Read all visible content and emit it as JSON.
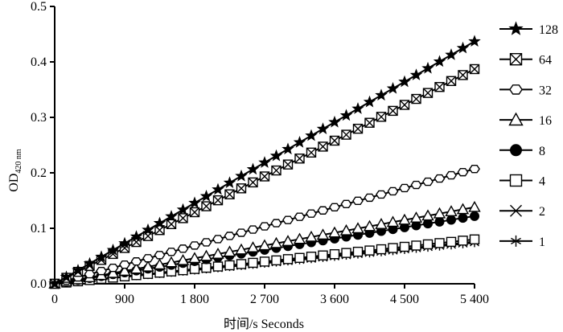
{
  "chart_data": {
    "type": "line",
    "xlabel": "时间/s Seconds",
    "ylabel_main": "OD",
    "ylabel_sub": "420 nm",
    "xlim": [
      0,
      5400
    ],
    "ylim": [
      0,
      0.5
    ],
    "x_ticks": [
      0,
      900,
      1800,
      2700,
      3600,
      4500,
      5400
    ],
    "x_tick_labels": [
      "0",
      "900",
      "1 800",
      "2 700",
      "3 600",
      "4 500",
      "5 400"
    ],
    "y_ticks": [
      0.0,
      0.1,
      0.2,
      0.3,
      0.4,
      0.5
    ],
    "y_tick_labels": [
      "0.0",
      "0.1",
      "0.2",
      "0.3",
      "0.4",
      "0.5"
    ],
    "x_start": 0,
    "x_step": 150,
    "x_count": 37,
    "grid": false,
    "legend_position": "right",
    "series": [
      {
        "name": "128",
        "marker": "star",
        "start": 0.0,
        "end": 0.437
      },
      {
        "name": "64",
        "marker": "boxx",
        "start": 0.0,
        "end": 0.387
      },
      {
        "name": "32",
        "marker": "hexagon",
        "start": 0.0,
        "end": 0.207
      },
      {
        "name": "16",
        "marker": "triangle",
        "start": 0.0,
        "end": 0.138
      },
      {
        "name": "8",
        "marker": "circle-filled",
        "start": 0.0,
        "end": 0.122
      },
      {
        "name": "4",
        "marker": "square",
        "start": 0.0,
        "end": 0.08
      },
      {
        "name": "2",
        "marker": "x",
        "start": 0.0,
        "end": 0.076
      },
      {
        "name": "1",
        "marker": "asterisk",
        "start": 0.0,
        "end": 0.074
      }
    ]
  }
}
